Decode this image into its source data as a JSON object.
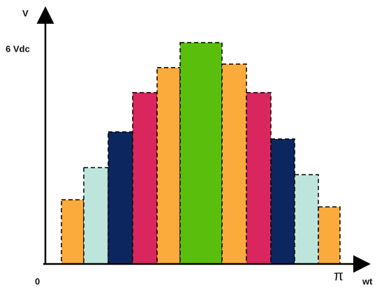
{
  "chart_data": {
    "type": "bar",
    "y_label": "V",
    "x_label": "wt",
    "x_start_label": "0",
    "x_end_label": "π",
    "categories": [
      null,
      null,
      null,
      null,
      null,
      null,
      null,
      null,
      null,
      null,
      null
    ],
    "values": [
      1.8,
      2.7,
      3.7,
      4.8,
      5.5,
      6.2,
      5.6,
      4.8,
      3.5,
      2.5,
      1.6
    ],
    "colors": [
      "#fbaa3c",
      "#bde5dc",
      "#0c2760",
      "#d9265f",
      "#fbaa3c",
      "#5abf0c",
      "#fbaa3c",
      "#d9265f",
      "#0c2760",
      "#bde5dc",
      "#fbaa3c"
    ],
    "ylim": [
      0,
      7.1
    ],
    "yticks": [
      {
        "value": 6,
        "label": "6 Vdc"
      }
    ],
    "grid": false
  }
}
